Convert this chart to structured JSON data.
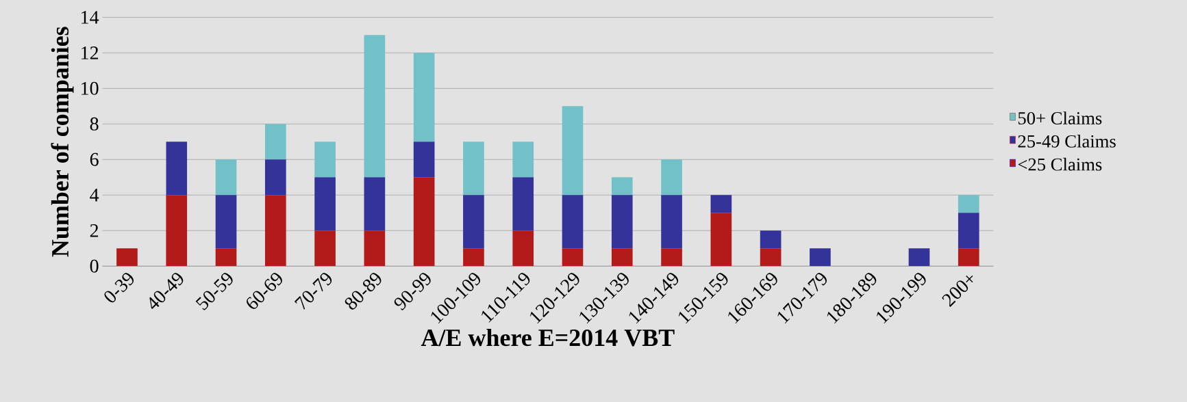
{
  "chart_data": {
    "type": "bar",
    "stacked": true,
    "xlabel": "A/E where E=2014 VBT",
    "ylabel": "Number of companies",
    "categories": [
      "0-39",
      "40-49",
      "50-59",
      "60-69",
      "70-79",
      "80-89",
      "90-99",
      "100-109",
      "110-119",
      "120-129",
      "130-139",
      "140-149",
      "150-159",
      "160-169",
      "170-179",
      "180-189",
      "190-199",
      "200+"
    ],
    "series": [
      {
        "name": "<25 Claims",
        "color": "#b31b1b",
        "values": [
          1,
          4,
          1,
          4,
          2,
          2,
          5,
          1,
          2,
          1,
          1,
          1,
          3,
          1,
          0,
          0,
          0,
          1
        ]
      },
      {
        "name": "25-49 Claims",
        "color": "#333399",
        "values": [
          0,
          3,
          3,
          2,
          3,
          3,
          2,
          3,
          3,
          3,
          3,
          3,
          1,
          1,
          1,
          0,
          1,
          2
        ]
      },
      {
        "name": "50+ Claims",
        "color": "#72c1c8",
        "values": [
          0,
          0,
          2,
          2,
          2,
          8,
          5,
          3,
          2,
          5,
          1,
          2,
          0,
          0,
          0,
          0,
          0,
          1
        ]
      }
    ],
    "ylim": [
      0,
      14
    ],
    "yticks": [
      0,
      2,
      4,
      6,
      8,
      10,
      12,
      14
    ],
    "grid": "y",
    "legend": "right"
  }
}
